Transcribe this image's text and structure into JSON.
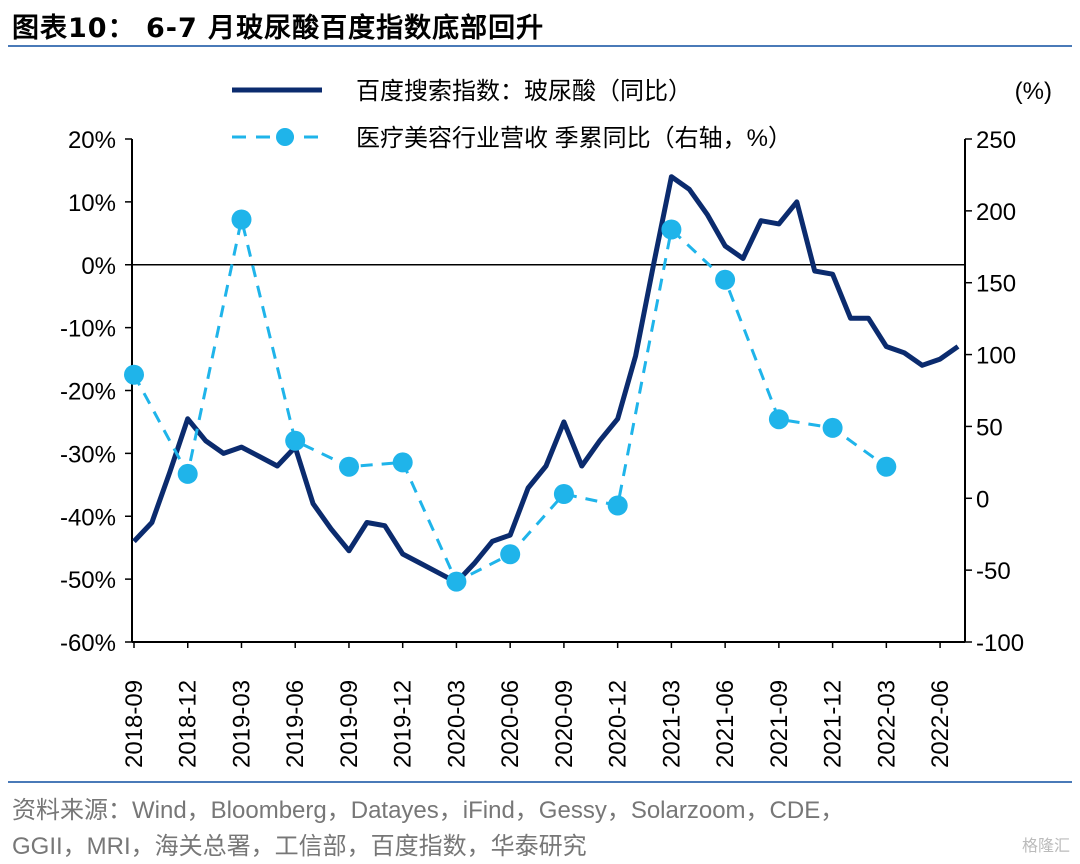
{
  "figure": {
    "title": "图表10： 6-7 月玻尿酸百度指数底部回升",
    "source_line1": "资料来源：Wind，Bloomberg，Datayes，iFind，Gessy，Solarzoom，CDE，",
    "source_line2": "GGII，MRI，海关总署，工信部，百度指数，华泰研究",
    "watermark": "格隆汇"
  },
  "chart_data": {
    "type": "line",
    "right_axis_unit": "(%)",
    "left_axis": {
      "range": [
        -60,
        20
      ],
      "ticks": [
        "20%",
        "10%",
        "0%",
        "-10%",
        "-20%",
        "-30%",
        "-40%",
        "-50%",
        "-60%"
      ]
    },
    "right_axis": {
      "range": [
        -100,
        250
      ],
      "ticks": [
        "250",
        "200",
        "150",
        "100",
        "50",
        "0",
        "-50",
        "-100"
      ]
    },
    "x_tick_labels": [
      "2018-09",
      "2018-12",
      "2019-03",
      "2019-06",
      "2019-09",
      "2019-12",
      "2020-03",
      "2020-06",
      "2020-09",
      "2020-12",
      "2021-03",
      "2021-06",
      "2021-09",
      "2021-12",
      "2022-03",
      "2022-06"
    ],
    "legend": {
      "placement": "top"
    },
    "colors": {
      "baidu": "#0b2b6e",
      "revenue": "#1fb4ea"
    },
    "series": [
      {
        "name": "百度搜索指数：玻尿酸（同比）",
        "axis": "left",
        "style": "solid",
        "x": [
          "2018-09",
          "2018-10",
          "2018-11",
          "2018-12",
          "2019-01",
          "2019-02",
          "2019-03",
          "2019-04",
          "2019-05",
          "2019-06",
          "2019-07",
          "2019-08",
          "2019-09",
          "2019-10",
          "2019-11",
          "2019-12",
          "2020-01",
          "2020-02",
          "2020-03",
          "2020-04",
          "2020-05",
          "2020-06",
          "2020-07",
          "2020-08",
          "2020-09",
          "2020-10",
          "2020-11",
          "2020-12",
          "2021-01",
          "2021-02",
          "2021-03",
          "2021-04",
          "2021-05",
          "2021-06",
          "2021-07",
          "2021-08",
          "2021-09",
          "2021-10",
          "2021-11",
          "2021-12",
          "2022-01",
          "2022-02",
          "2022-03",
          "2022-04",
          "2022-05",
          "2022-06",
          "2022-07"
        ],
        "values": [
          -44,
          -41,
          -33,
          -24.5,
          -28,
          -30,
          -29,
          -30.5,
          -32,
          -29,
          -38,
          -42,
          -45.5,
          -41,
          -41.5,
          -46,
          -47.5,
          -49,
          -50.5,
          -47.5,
          -44,
          -43,
          -35.5,
          -32,
          -25,
          -32,
          -28,
          -24.5,
          -14.5,
          0,
          14,
          12,
          8,
          3,
          1,
          7,
          6.5,
          10,
          -1,
          -1.5,
          -8.5,
          -8.5,
          -13,
          -14,
          -16,
          -15,
          -13
        ]
      },
      {
        "name": "医疗美容行业营收 季累同比（右轴，%）",
        "axis": "right",
        "style": "dashed",
        "x": [
          "2018-09",
          "2018-12",
          "2019-03",
          "2019-06",
          "2019-09",
          "2019-12",
          "2020-03",
          "2020-06",
          "2020-09",
          "2020-12",
          "2021-03",
          "2021-06",
          "2021-09",
          "2021-12",
          "2022-03"
        ],
        "values": [
          86,
          17,
          194,
          40,
          22,
          25,
          -58,
          -39,
          3,
          -5,
          187,
          152,
          55,
          49,
          22
        ]
      }
    ]
  }
}
